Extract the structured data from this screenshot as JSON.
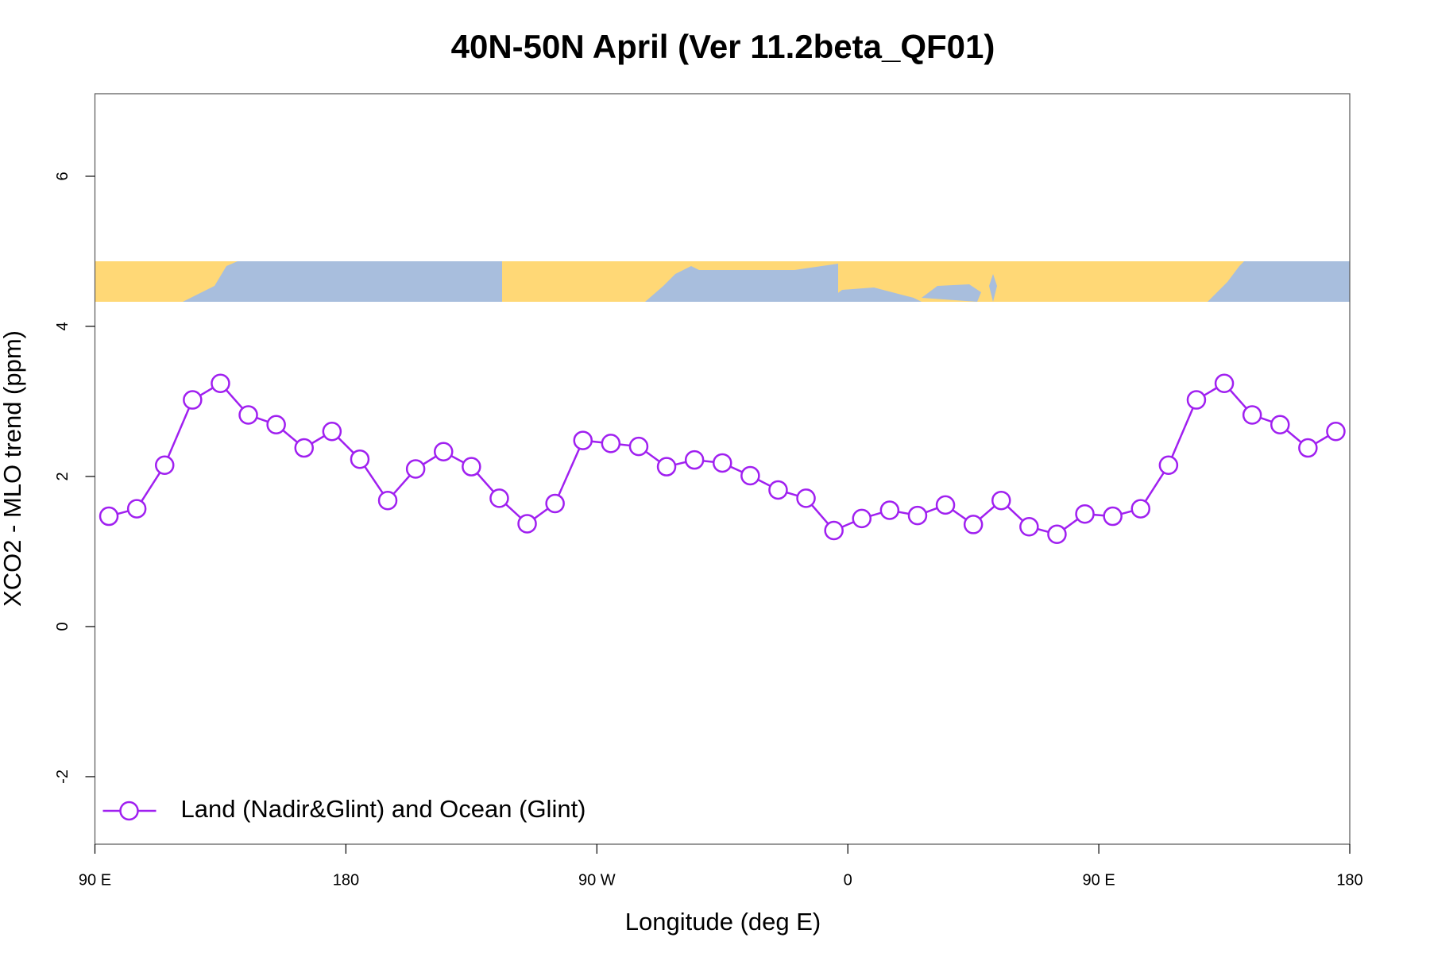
{
  "chart_data": {
    "type": "line",
    "title": "40N-50N April (Ver 11.2beta_QF01)",
    "xlabel": "Longitude (deg E)",
    "ylabel": "XCO2 - MLO trend (ppm)",
    "x": [
      95,
      105,
      115,
      125,
      135,
      145,
      155,
      165,
      175,
      185,
      195,
      205,
      215,
      225,
      235,
      245,
      255,
      265,
      275,
      285,
      295,
      305,
      315,
      325,
      335,
      345,
      355,
      365,
      375,
      385,
      395,
      405,
      415,
      425,
      435,
      445,
      455,
      465,
      475,
      485,
      495,
      505,
      515,
      525,
      535
    ],
    "series": [
      {
        "name": "Land (Nadir&Glint) and Ocean (Glint)",
        "color": "#a020f0",
        "values": [
          1.47,
          1.57,
          2.15,
          3.02,
          3.24,
          2.82,
          2.69,
          2.38,
          2.6,
          2.23,
          1.68,
          2.1,
          2.33,
          2.13,
          1.71,
          1.37,
          1.64,
          2.48,
          2.44,
          2.4,
          2.13,
          2.22,
          2.18,
          2.01,
          1.82,
          1.71,
          1.28,
          1.44,
          1.55,
          1.48,
          1.62,
          1.36,
          1.68,
          1.33,
          1.23,
          1.5,
          1.47,
          1.57,
          2.15,
          3.02,
          3.24,
          2.82,
          2.69,
          2.38,
          2.6
        ]
      }
    ],
    "xlim": [
      90,
      540
    ],
    "xticks": [
      {
        "value": 90,
        "label": "90 E"
      },
      180,
      {
        "value": 270,
        "label": "90 W"
      },
      {
        "value": 360,
        "label": "0"
      },
      {
        "value": 450,
        "label": "90 E"
      },
      {
        "value": 540,
        "label": "180"
      }
    ],
    "ylim": [
      -2.9,
      7.1
    ],
    "yticks": [
      -2,
      0,
      2,
      4,
      6
    ],
    "legend": "bottom-left"
  }
}
